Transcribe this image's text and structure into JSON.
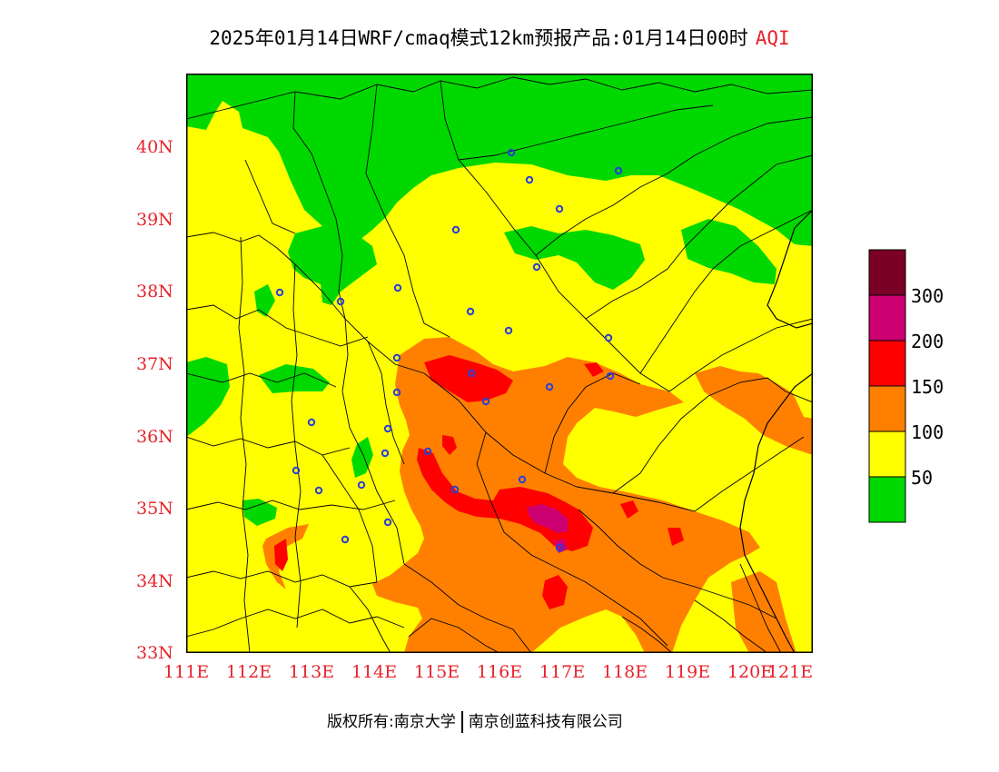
{
  "title": {
    "main": "2025年01月14日WRF/cmaq模式12km预报产品:01月14日00时",
    "product": "AQI"
  },
  "colors": {
    "axis_labels": "#e8222a",
    "good": "#00d800",
    "moderate": "#ffff00",
    "sensitive": "#ff8000",
    "unhealthy": "#ff0000",
    "very_unhealthy": "#cc0070",
    "hazardous": "#7a0025",
    "city_marker": "#2a3fd6"
  },
  "axes": {
    "x_ticks": [
      "111E",
      "112E",
      "113E",
      "114E",
      "115E",
      "116E",
      "117E",
      "118E",
      "119E",
      "120E",
      "121E"
    ],
    "y_ticks": [
      "40N",
      "39N",
      "38N",
      "37N",
      "36N",
      "35N",
      "34N",
      "33N"
    ]
  },
  "legend": {
    "labels": [
      "300",
      "200",
      "150",
      "100",
      "50"
    ],
    "bins": [
      {
        "range": "0-50",
        "color": "#00d800"
      },
      {
        "range": "50-100",
        "color": "#ffff00"
      },
      {
        "range": "100-150",
        "color": "#ff8000"
      },
      {
        "range": "150-200",
        "color": "#ff0000"
      },
      {
        "range": "200-300",
        "color": "#cc0070"
      },
      {
        "range": ">300",
        "color": "#7a0025"
      }
    ]
  },
  "footer": {
    "copyright": "版权所有:南京大学",
    "company": "南京创蓝科技有限公司"
  }
}
